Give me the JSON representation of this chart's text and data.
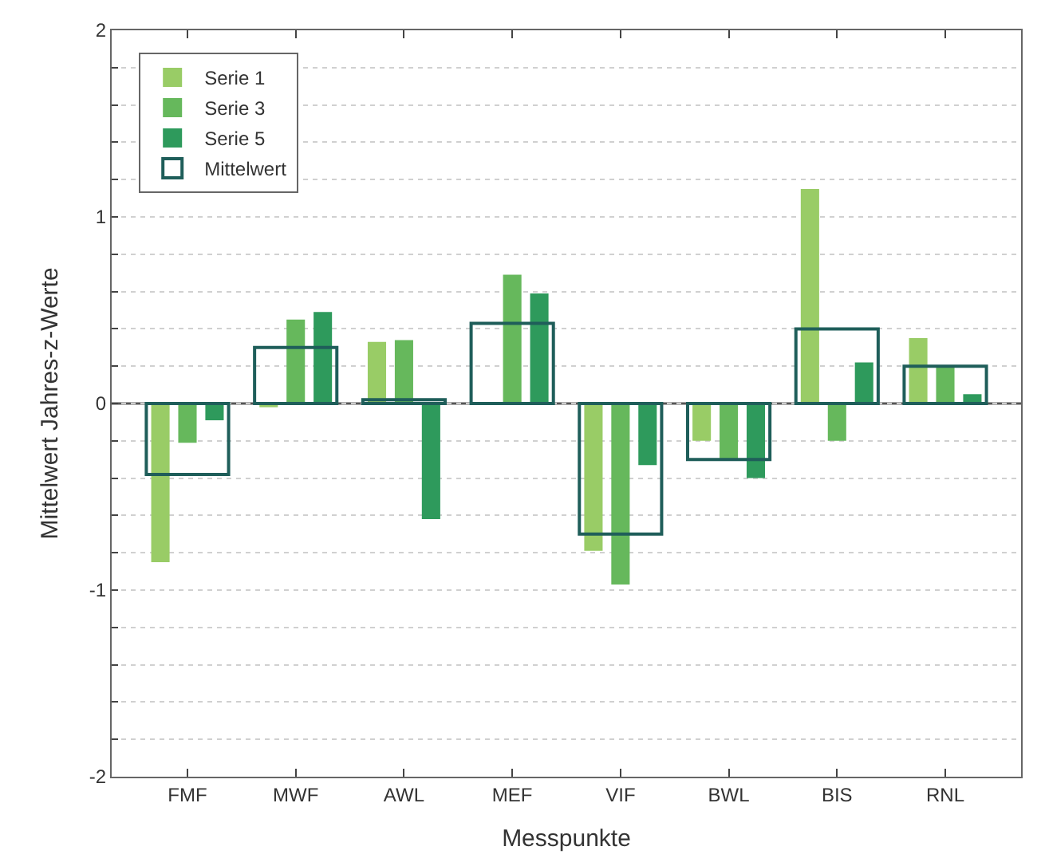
{
  "chart_data": {
    "type": "bar",
    "xlabel": "Messpunkte",
    "ylabel": "Mittelwert Jahres-z-Werte",
    "categories": [
      "FMF",
      "MWF",
      "AWL",
      "MEF",
      "VIF",
      "BWL",
      "BIS",
      "RNL"
    ],
    "series": [
      {
        "name": "Serie 1",
        "color": "#99cc66",
        "values": [
          -0.85,
          -0.02,
          0.33,
          0,
          -0.79,
          -0.2,
          1.15,
          0.35
        ]
      },
      {
        "name": "Serie 3",
        "color": "#66b85c",
        "values": [
          -0.21,
          0.45,
          0.34,
          0.69,
          -0.97,
          -0.3,
          -0.2,
          0.2
        ]
      },
      {
        "name": "Serie 5",
        "color": "#2e9a5c",
        "values": [
          -0.09,
          0.49,
          -0.62,
          0.59,
          -0.33,
          -0.4,
          0.22,
          0.05
        ]
      },
      {
        "name": "Mittelwert",
        "type": "bar",
        "color": "#1f5e5a",
        "values": [
          -0.38,
          0.3,
          0.02,
          0.43,
          -0.7,
          -0.3,
          0.4,
          0.2
        ]
      }
    ],
    "ylim": [
      -2,
      2
    ],
    "yticks": [
      -2,
      {
        "value": -1.8,
        "label": null
      },
      {
        "value": -1.6,
        "label": null
      },
      {
        "value": -1.4,
        "label": null
      },
      {
        "value": -1.2,
        "label": null
      },
      -1,
      {
        "value": -0.8,
        "label": null
      },
      {
        "value": -0.6,
        "label": null
      },
      {
        "value": -0.4,
        "label": null
      },
      {
        "value": -0.2,
        "label": null
      },
      0,
      {
        "value": 0.2,
        "label": null
      },
      {
        "value": 0.4,
        "label": null
      },
      {
        "value": 0.6,
        "label": null
      },
      {
        "value": 0.8,
        "label": null
      },
      1,
      {
        "value": 1.2,
        "label": null
      },
      {
        "value": 1.4,
        "label": null
      },
      {
        "value": 1.6,
        "label": null
      },
      {
        "value": 1.8,
        "label": null
      },
      2
    ],
    "ref_lines": [
      {
        "axis": "y",
        "value": 0,
        "color": "#555555"
      }
    ],
    "grid": "y",
    "legend": "top left"
  }
}
